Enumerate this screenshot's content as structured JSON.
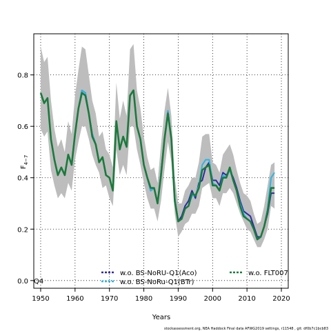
{
  "chart_data": {
    "type": "line",
    "xlabel": "Years",
    "ylabel": "F",
    "ylabel_sub": "4−7",
    "xlim": [
      1948,
      2022
    ],
    "ylim": [
      -0.03,
      0.96
    ],
    "x_ticks": [
      1950,
      1960,
      1970,
      1980,
      1990,
      2000,
      2010,
      2020
    ],
    "y_ticks": [
      0.0,
      0.2,
      0.4,
      0.6,
      0.8
    ],
    "y_tick_labels": [
      "0.0",
      "0.2",
      "0.4",
      "0.6",
      "0.8"
    ],
    "grid": "dotted",
    "corner_label": "Q4",
    "footer": "stockassessment.org, NEA Haddock Final data AFWG2019 settings, r11548 , git: df0b7c1bcb83",
    "band_color": "#bdbdbd",
    "band_upper": [
      [
        1950,
        0.91
      ],
      [
        1951,
        0.85
      ],
      [
        1952,
        0.87
      ],
      [
        1953,
        0.7
      ],
      [
        1954,
        0.59
      ],
      [
        1955,
        0.52
      ],
      [
        1956,
        0.55
      ],
      [
        1957,
        0.5
      ],
      [
        1958,
        0.62
      ],
      [
        1959,
        0.57
      ],
      [
        1960,
        0.72
      ],
      [
        1961,
        0.82
      ],
      [
        1962,
        0.91
      ],
      [
        1963,
        0.9
      ],
      [
        1964,
        0.8
      ],
      [
        1965,
        0.7
      ],
      [
        1966,
        0.65
      ],
      [
        1967,
        0.56
      ],
      [
        1968,
        0.58
      ],
      [
        1969,
        0.51
      ],
      [
        1970,
        0.49
      ],
      [
        1971,
        0.44
      ],
      [
        1972,
        0.77
      ],
      [
        1973,
        0.63
      ],
      [
        1974,
        0.7
      ],
      [
        1975,
        0.64
      ],
      [
        1976,
        0.9
      ],
      [
        1977,
        0.92
      ],
      [
        1978,
        0.74
      ],
      [
        1979,
        0.67
      ],
      [
        1980,
        0.56
      ],
      [
        1981,
        0.48
      ],
      [
        1982,
        0.43
      ],
      [
        1983,
        0.44
      ],
      [
        1984,
        0.38
      ],
      [
        1985,
        0.53
      ],
      [
        1986,
        0.66
      ],
      [
        1987,
        0.75
      ],
      [
        1988,
        0.64
      ],
      [
        1989,
        0.4
      ],
      [
        1990,
        0.3
      ],
      [
        1991,
        0.3
      ],
      [
        1992,
        0.35
      ],
      [
        1993,
        0.37
      ],
      [
        1994,
        0.4
      ],
      [
        1995,
        0.4
      ],
      [
        1996,
        0.46
      ],
      [
        1997,
        0.56
      ],
      [
        1998,
        0.57
      ],
      [
        1999,
        0.57
      ],
      [
        2000,
        0.46
      ],
      [
        2001,
        0.45
      ],
      [
        2002,
        0.42
      ],
      [
        2003,
        0.49
      ],
      [
        2004,
        0.51
      ],
      [
        2005,
        0.53
      ],
      [
        2006,
        0.49
      ],
      [
        2007,
        0.43
      ],
      [
        2008,
        0.38
      ],
      [
        2009,
        0.34
      ],
      [
        2010,
        0.33
      ],
      [
        2011,
        0.31
      ],
      [
        2012,
        0.26
      ],
      [
        2013,
        0.22
      ],
      [
        2014,
        0.23
      ],
      [
        2015,
        0.29
      ],
      [
        2016,
        0.37
      ],
      [
        2017,
        0.45
      ],
      [
        2018,
        0.46
      ]
    ],
    "band_lower": [
      [
        1950,
        0.59
      ],
      [
        1951,
        0.56
      ],
      [
        1952,
        0.58
      ],
      [
        1953,
        0.43
      ],
      [
        1954,
        0.37
      ],
      [
        1955,
        0.32
      ],
      [
        1956,
        0.34
      ],
      [
        1957,
        0.32
      ],
      [
        1958,
        0.38
      ],
      [
        1959,
        0.35
      ],
      [
        1960,
        0.47
      ],
      [
        1961,
        0.54
      ],
      [
        1962,
        0.6
      ],
      [
        1963,
        0.6
      ],
      [
        1964,
        0.55
      ],
      [
        1965,
        0.49
      ],
      [
        1966,
        0.45
      ],
      [
        1967,
        0.42
      ],
      [
        1968,
        0.36
      ],
      [
        1969,
        0.37
      ],
      [
        1970,
        0.32
      ],
      [
        1971,
        0.29
      ],
      [
        1972,
        0.51
      ],
      [
        1973,
        0.41
      ],
      [
        1974,
        0.45
      ],
      [
        1975,
        0.41
      ],
      [
        1976,
        0.6
      ],
      [
        1977,
        0.6
      ],
      [
        1978,
        0.51
      ],
      [
        1979,
        0.45
      ],
      [
        1980,
        0.38
      ],
      [
        1981,
        0.32
      ],
      [
        1982,
        0.28
      ],
      [
        1983,
        0.28
      ],
      [
        1984,
        0.23
      ],
      [
        1985,
        0.31
      ],
      [
        1986,
        0.43
      ],
      [
        1987,
        0.54
      ],
      [
        1988,
        0.46
      ],
      [
        1989,
        0.26
      ],
      [
        1990,
        0.17
      ],
      [
        1991,
        0.19
      ],
      [
        1992,
        0.22
      ],
      [
        1993,
        0.23
      ],
      [
        1994,
        0.26
      ],
      [
        1995,
        0.26
      ],
      [
        1996,
        0.29
      ],
      [
        1997,
        0.36
      ],
      [
        1998,
        0.37
      ],
      [
        1999,
        0.38
      ],
      [
        2000,
        0.32
      ],
      [
        2001,
        0.32
      ],
      [
        2002,
        0.29
      ],
      [
        2003,
        0.34
      ],
      [
        2004,
        0.34
      ],
      [
        2005,
        0.36
      ],
      [
        2006,
        0.34
      ],
      [
        2007,
        0.3
      ],
      [
        2008,
        0.26
      ],
      [
        2009,
        0.23
      ],
      [
        2010,
        0.2
      ],
      [
        2011,
        0.19
      ],
      [
        2012,
        0.16
      ],
      [
        2013,
        0.13
      ],
      [
        2014,
        0.13
      ],
      [
        2015,
        0.16
      ],
      [
        2016,
        0.2
      ],
      [
        2017,
        0.29
      ],
      [
        2018,
        0.28
      ]
    ],
    "series": [
      {
        "name": "w.o. BS-NoRU-Q1(Aco)",
        "color": "#2a2aa8",
        "style": "solid",
        "points": [
          [
            1950,
            0.73
          ],
          [
            1951,
            0.69
          ],
          [
            1952,
            0.71
          ],
          [
            1953,
            0.55
          ],
          [
            1954,
            0.47
          ],
          [
            1955,
            0.41
          ],
          [
            1956,
            0.44
          ],
          [
            1957,
            0.41
          ],
          [
            1958,
            0.49
          ],
          [
            1959,
            0.45
          ],
          [
            1960,
            0.57
          ],
          [
            1961,
            0.67
          ],
          [
            1962,
            0.74
          ],
          [
            1963,
            0.73
          ],
          [
            1964,
            0.65
          ],
          [
            1965,
            0.57
          ],
          [
            1966,
            0.53
          ],
          [
            1967,
            0.46
          ],
          [
            1968,
            0.48
          ],
          [
            1969,
            0.41
          ],
          [
            1970,
            0.4
          ],
          [
            1971,
            0.35
          ],
          [
            1972,
            0.62
          ],
          [
            1973,
            0.51
          ],
          [
            1974,
            0.56
          ],
          [
            1975,
            0.52
          ],
          [
            1976,
            0.72
          ],
          [
            1977,
            0.74
          ],
          [
            1978,
            0.6
          ],
          [
            1979,
            0.55
          ],
          [
            1980,
            0.45
          ],
          [
            1981,
            0.4
          ],
          [
            1982,
            0.35
          ],
          [
            1983,
            0.36
          ],
          [
            1984,
            0.3
          ],
          [
            1985,
            0.42
          ],
          [
            1986,
            0.55
          ],
          [
            1987,
            0.66
          ],
          [
            1988,
            0.55
          ],
          [
            1989,
            0.32
          ],
          [
            1990,
            0.23
          ],
          [
            1991,
            0.25
          ],
          [
            1992,
            0.29
          ],
          [
            1993,
            0.31
          ],
          [
            1994,
            0.35
          ],
          [
            1995,
            0.32
          ],
          [
            1996,
            0.38
          ],
          [
            1997,
            0.39
          ],
          [
            1998,
            0.44
          ],
          [
            1999,
            0.46
          ],
          [
            2000,
            0.39
          ],
          [
            2001,
            0.39
          ],
          [
            2002,
            0.37
          ],
          [
            2003,
            0.42
          ],
          [
            2004,
            0.41
          ],
          [
            2005,
            0.43
          ],
          [
            2006,
            0.4
          ],
          [
            2007,
            0.36
          ],
          [
            2008,
            0.31
          ],
          [
            2009,
            0.27
          ],
          [
            2010,
            0.26
          ],
          [
            2011,
            0.25
          ],
          [
            2012,
            0.21
          ],
          [
            2013,
            0.17
          ],
          [
            2014,
            0.17
          ],
          [
            2015,
            0.21
          ],
          [
            2016,
            0.26
          ],
          [
            2017,
            0.34
          ],
          [
            2018,
            0.34
          ]
        ]
      },
      {
        "name": "w.o. BS-NoRu-Q1(BTr)",
        "color": "#29b6e6",
        "style": "solid",
        "points": [
          [
            1950,
            0.73
          ],
          [
            1951,
            0.69
          ],
          [
            1952,
            0.71
          ],
          [
            1953,
            0.55
          ],
          [
            1954,
            0.47
          ],
          [
            1955,
            0.41
          ],
          [
            1956,
            0.44
          ],
          [
            1957,
            0.41
          ],
          [
            1958,
            0.49
          ],
          [
            1959,
            0.45
          ],
          [
            1960,
            0.57
          ],
          [
            1961,
            0.67
          ],
          [
            1962,
            0.74
          ],
          [
            1963,
            0.73
          ],
          [
            1964,
            0.65
          ],
          [
            1965,
            0.57
          ],
          [
            1966,
            0.53
          ],
          [
            1967,
            0.46
          ],
          [
            1968,
            0.48
          ],
          [
            1969,
            0.41
          ],
          [
            1970,
            0.4
          ],
          [
            1971,
            0.35
          ],
          [
            1972,
            0.62
          ],
          [
            1973,
            0.51
          ],
          [
            1974,
            0.56
          ],
          [
            1975,
            0.52
          ],
          [
            1976,
            0.72
          ],
          [
            1977,
            0.74
          ],
          [
            1978,
            0.6
          ],
          [
            1979,
            0.55
          ],
          [
            1980,
            0.45
          ],
          [
            1981,
            0.4
          ],
          [
            1982,
            0.35
          ],
          [
            1983,
            0.36
          ],
          [
            1984,
            0.3
          ],
          [
            1985,
            0.42
          ],
          [
            1986,
            0.55
          ],
          [
            1987,
            0.66
          ],
          [
            1988,
            0.55
          ],
          [
            1989,
            0.32
          ],
          [
            1990,
            0.23
          ],
          [
            1991,
            0.24
          ],
          [
            1992,
            0.28
          ],
          [
            1993,
            0.29
          ],
          [
            1994,
            0.33
          ],
          [
            1995,
            0.33
          ],
          [
            1996,
            0.37
          ],
          [
            1997,
            0.45
          ],
          [
            1998,
            0.47
          ],
          [
            1999,
            0.47
          ],
          [
            2000,
            0.38
          ],
          [
            2001,
            0.37
          ],
          [
            2002,
            0.35
          ],
          [
            2003,
            0.41
          ],
          [
            2004,
            0.4
          ],
          [
            2005,
            0.43
          ],
          [
            2006,
            0.39
          ],
          [
            2007,
            0.35
          ],
          [
            2008,
            0.3
          ],
          [
            2009,
            0.26
          ],
          [
            2010,
            0.24
          ],
          [
            2011,
            0.23
          ],
          [
            2012,
            0.2
          ],
          [
            2013,
            0.16
          ],
          [
            2014,
            0.17
          ],
          [
            2015,
            0.21
          ],
          [
            2016,
            0.28
          ],
          [
            2017,
            0.4
          ],
          [
            2018,
            0.42
          ]
        ]
      },
      {
        "name": "w.o. FLT007",
        "color": "#1a7a3c",
        "style": "solid",
        "points": [
          [
            1950,
            0.73
          ],
          [
            1951,
            0.69
          ],
          [
            1952,
            0.71
          ],
          [
            1953,
            0.55
          ],
          [
            1954,
            0.47
          ],
          [
            1955,
            0.41
          ],
          [
            1956,
            0.44
          ],
          [
            1957,
            0.41
          ],
          [
            1958,
            0.49
          ],
          [
            1959,
            0.45
          ],
          [
            1960,
            0.57
          ],
          [
            1961,
            0.67
          ],
          [
            1962,
            0.73
          ],
          [
            1963,
            0.72
          ],
          [
            1964,
            0.65
          ],
          [
            1965,
            0.56
          ],
          [
            1966,
            0.53
          ],
          [
            1967,
            0.46
          ],
          [
            1968,
            0.48
          ],
          [
            1969,
            0.41
          ],
          [
            1970,
            0.4
          ],
          [
            1971,
            0.35
          ],
          [
            1972,
            0.62
          ],
          [
            1973,
            0.51
          ],
          [
            1974,
            0.56
          ],
          [
            1975,
            0.52
          ],
          [
            1976,
            0.72
          ],
          [
            1977,
            0.74
          ],
          [
            1978,
            0.6
          ],
          [
            1979,
            0.55
          ],
          [
            1980,
            0.45
          ],
          [
            1981,
            0.4
          ],
          [
            1982,
            0.36
          ],
          [
            1983,
            0.36
          ],
          [
            1984,
            0.3
          ],
          [
            1985,
            0.41
          ],
          [
            1986,
            0.55
          ],
          [
            1987,
            0.65
          ],
          [
            1988,
            0.55
          ],
          [
            1989,
            0.31
          ],
          [
            1990,
            0.23
          ],
          [
            1991,
            0.24
          ],
          [
            1992,
            0.28
          ],
          [
            1993,
            0.29
          ],
          [
            1994,
            0.34
          ],
          [
            1995,
            0.33
          ],
          [
            1996,
            0.36
          ],
          [
            1997,
            0.43
          ],
          [
            1998,
            0.44
          ],
          [
            1999,
            0.45
          ],
          [
            2000,
            0.37
          ],
          [
            2001,
            0.37
          ],
          [
            2002,
            0.35
          ],
          [
            2003,
            0.4
          ],
          [
            2004,
            0.4
          ],
          [
            2005,
            0.44
          ],
          [
            2006,
            0.39
          ],
          [
            2007,
            0.35
          ],
          [
            2008,
            0.29
          ],
          [
            2009,
            0.25
          ],
          [
            2010,
            0.24
          ],
          [
            2011,
            0.23
          ],
          [
            2012,
            0.2
          ],
          [
            2013,
            0.16
          ],
          [
            2014,
            0.17
          ],
          [
            2015,
            0.21
          ],
          [
            2016,
            0.27
          ],
          [
            2017,
            0.36
          ],
          [
            2018,
            0.36
          ]
        ]
      }
    ]
  }
}
